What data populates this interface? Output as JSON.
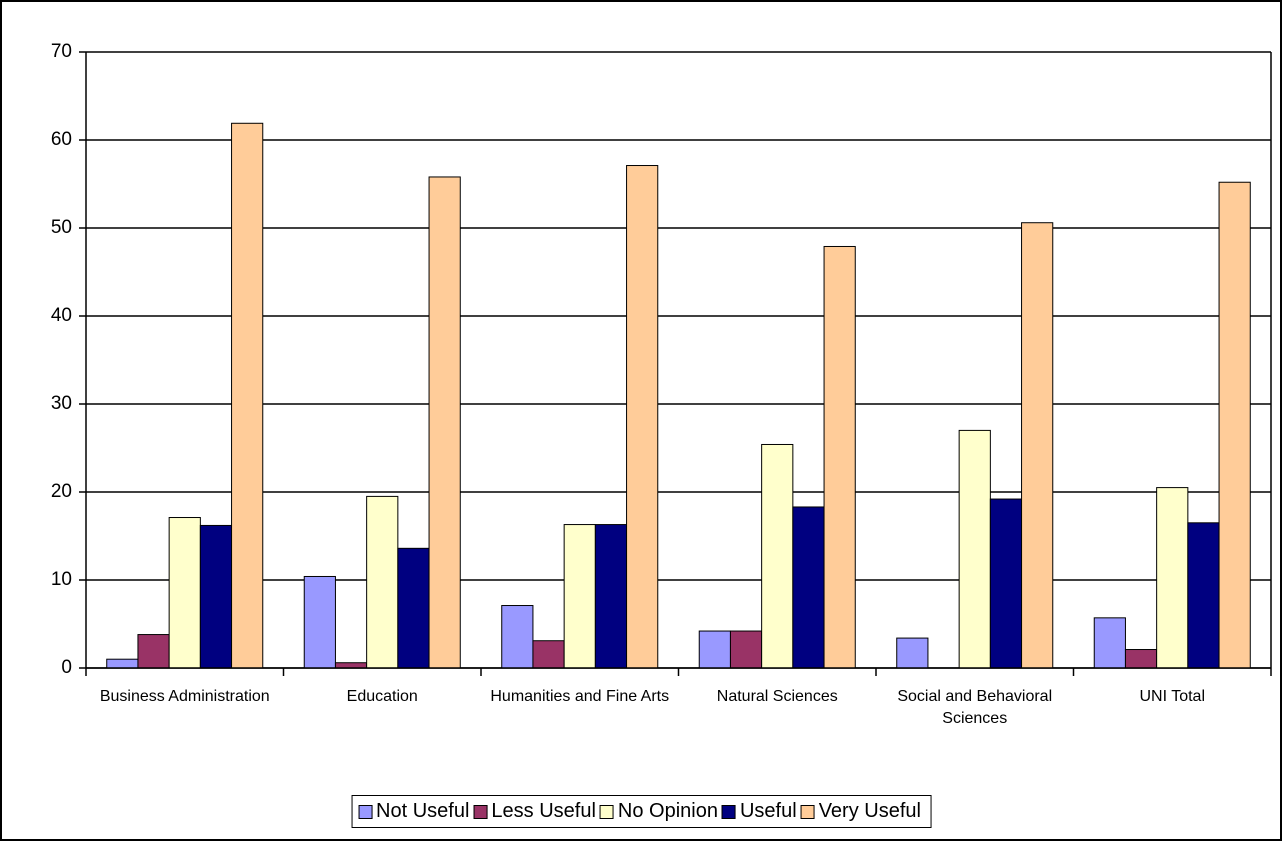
{
  "chart_data": {
    "type": "bar",
    "categories": [
      "Business Administration",
      "Education",
      "Humanities and Fine Arts",
      "Natural Sciences",
      "Social and Behavioral Sciences",
      "UNI Total"
    ],
    "series": [
      {
        "name": "Not Useful",
        "color": "#9999ff",
        "values": [
          1.0,
          10.4,
          7.1,
          4.2,
          3.4,
          5.7
        ]
      },
      {
        "name": "Less Useful",
        "color": "#993366",
        "values": [
          3.8,
          0.6,
          3.1,
          4.2,
          0,
          2.1
        ]
      },
      {
        "name": "No Opinion",
        "color": "#ffffcc",
        "values": [
          17.1,
          19.5,
          16.3,
          25.4,
          27.0,
          20.5
        ]
      },
      {
        "name": "Useful",
        "color": "#000080",
        "values": [
          16.2,
          13.6,
          16.3,
          18.3,
          19.2,
          16.5
        ]
      },
      {
        "name": "Very Useful",
        "color": "#ffcc99",
        "values": [
          61.9,
          55.8,
          57.1,
          47.9,
          50.6,
          55.2
        ]
      }
    ],
    "ylim": [
      0,
      70
    ],
    "yticks": [
      0,
      10,
      20,
      30,
      40,
      50,
      60,
      70
    ],
    "grid": true,
    "legend": "bottom"
  }
}
